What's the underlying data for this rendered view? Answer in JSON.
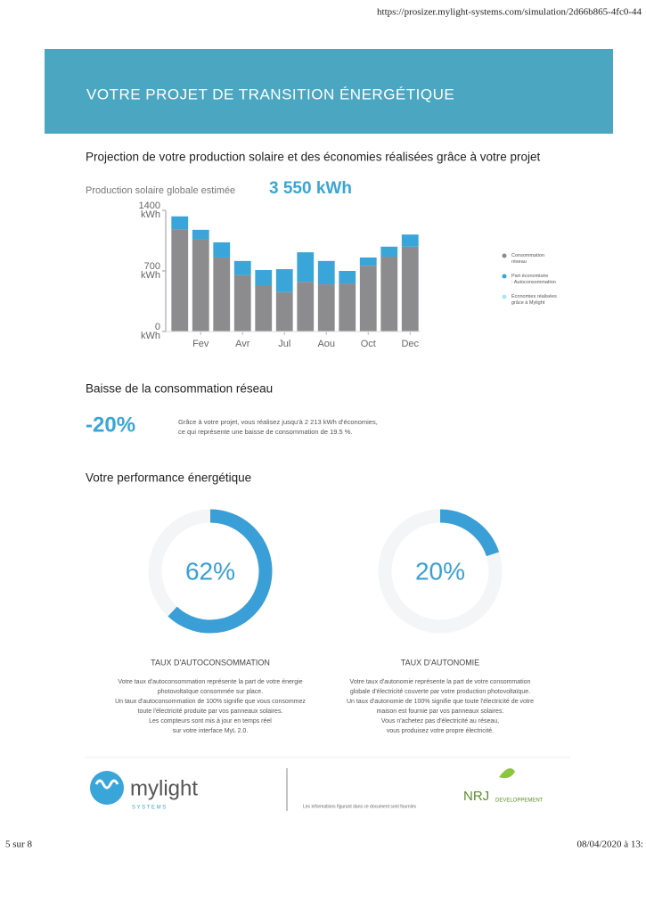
{
  "header": {
    "url": "https://prosizer.mylight-systems.com/simulation/2d66b865-4fc0-44",
    "title": "VOTRE PROJET DE TRANSITION ÉNERGÉTIQUE"
  },
  "projection": {
    "title": "Projection de votre production solaire et des économies réalisées grâce à votre projet",
    "production_label": "Production solaire globale estimée",
    "production_value": "3 550 kWh"
  },
  "chart_data": [
    {
      "type": "stacked-bar",
      "categories": [
        null,
        "Fev",
        null,
        "Avr",
        null,
        "Jul",
        null,
        "Aou",
        null,
        "Oct",
        null,
        "Dec"
      ],
      "series": [
        {
          "name": "Consommation réseau",
          "color": "#8c8c8f",
          "values": [
            1180,
            1070,
            855,
            650,
            525,
            455,
            575,
            545,
            555,
            760,
            865,
            980
          ]
        },
        {
          "name": "Part économisée : Autoconsommation",
          "color": "#3aa5d8",
          "values": [
            150,
            105,
            175,
            165,
            185,
            265,
            340,
            270,
            145,
            95,
            115,
            140
          ]
        },
        {
          "name": "Économies réalisées grâce à Mylight",
          "color": "#a9e6f0",
          "values": [
            0,
            0,
            0,
            0,
            0,
            0,
            0,
            0,
            0,
            0,
            0,
            0
          ]
        }
      ],
      "ylim": [
        0,
        1400
      ],
      "yticks": [
        {
          "value": 0,
          "label": "0 kWh"
        },
        {
          "value": 700,
          "label": "700 kWh"
        },
        {
          "value": 1400,
          "label": "1400 kWh"
        }
      ]
    },
    {
      "type": "donut",
      "title": "TAUX D'AUTOCONSOMMATION",
      "values": [
        62
      ],
      "value_labels": [
        "62%"
      ],
      "color": "#3a9fd6"
    },
    {
      "type": "donut",
      "title": "TAUX D'AUTONOMIE",
      "values": [
        20
      ],
      "value_labels": [
        "20%"
      ],
      "color": "#3a9fd6"
    }
  ],
  "reduction": {
    "title": "Baisse de la consommation réseau",
    "value": "-20%",
    "text": [
      "Grâce à votre projet, vous réalisez jusqu'à 2 213 kWh d'économies,",
      "ce qui représente une baisse de consommation de 19.5 %."
    ]
  },
  "performance": {
    "title": "Votre performance énergétique",
    "autoconsommation_text": [
      "Votre taux d'autoconsommation représente la part de votre énergie",
      "photovoltaïque consommée sur place.",
      "Un taux d'autoconsommation de 100% signifie que vous consommez",
      "toute l'électricité produite par vos panneaux solaires.",
      "Les compteurs sont mis à jour en temps réel",
      "sur votre interface MyL 2.0."
    ],
    "autonomie_text": [
      "Votre taux d'autonomie représente la part de votre consommation",
      "globale d'électricité couverte par votre production photovoltaïque.",
      "Un taux d'autonomie de 100% signifie que toute l'électricité de votre",
      "maison est fournie par vos panneaux solaires.",
      "Vous n'achetez pas d'électricité au réseau,",
      "vous produisez votre propre électricité."
    ]
  },
  "footer": {
    "brand": "mylight",
    "brand_sub": "S Y S T E M S",
    "disclaimer": "Les informations figurant dans ce document sont fournies",
    "partner": "NRJ",
    "partner_sub": "DEVELOPPEMENT",
    "page": "5 sur 8",
    "date": "08/04/2020 à 13:"
  }
}
